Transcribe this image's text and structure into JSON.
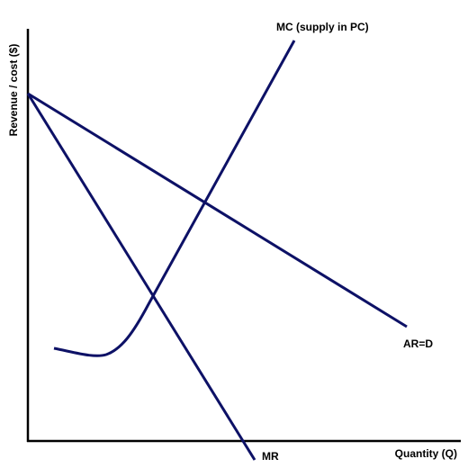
{
  "chart_data": {
    "type": "line",
    "title": "",
    "xlabel": "Quantity (Q)",
    "ylabel": "Revenue / cost ($)",
    "grid": false,
    "legend": "none",
    "series": [
      {
        "name": "MC (supply in PC)",
        "label": "MC (supply in PC)",
        "color": "#0d1166"
      },
      {
        "name": "AR=D",
        "label": "AR=D",
        "color": "#0d1166"
      },
      {
        "name": "MR",
        "label": "MR",
        "color": "#0d1166"
      }
    ]
  }
}
